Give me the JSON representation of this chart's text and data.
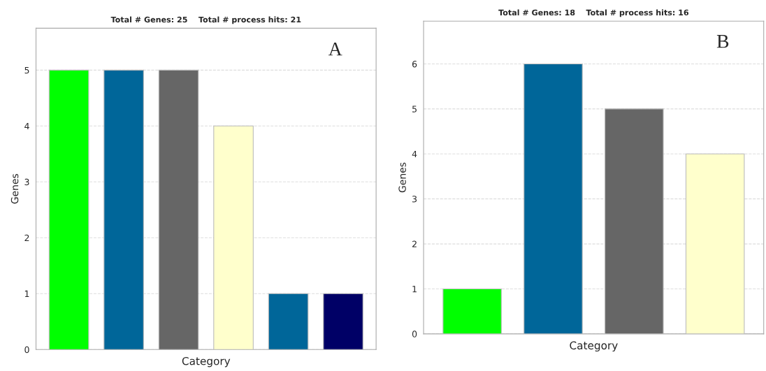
{
  "chart_data": [
    {
      "type": "bar",
      "title": "Total # Genes: 25    Total # process hits: 21",
      "xlabel": "Category",
      "ylabel": "Genes",
      "categories": [
        null,
        null,
        null,
        null,
        null,
        null
      ],
      "values": [
        5,
        5,
        5,
        4,
        1,
        1
      ],
      "colors": [
        "#00ff00",
        "#006699",
        "#666666",
        "#ffffcc",
        "#006699",
        "#000066"
      ],
      "ylim": [
        0,
        5.75
      ],
      "yticks": [
        0,
        1,
        2,
        3,
        4,
        5
      ],
      "grid": "y",
      "annotations": [
        "A"
      ]
    },
    {
      "type": "bar",
      "title": "Total # Genes: 18    Total # process hits: 16",
      "xlabel": "Category",
      "ylabel": "Genes",
      "categories": [
        null,
        null,
        null,
        null
      ],
      "values": [
        1,
        6,
        5,
        4
      ],
      "colors": [
        "#00ff00",
        "#006699",
        "#666666",
        "#ffffcc"
      ],
      "ylim": [
        0,
        6.95
      ],
      "yticks": [
        0,
        1,
        2,
        3,
        4,
        5,
        6
      ],
      "grid": "y",
      "annotations": [
        "B"
      ]
    }
  ]
}
